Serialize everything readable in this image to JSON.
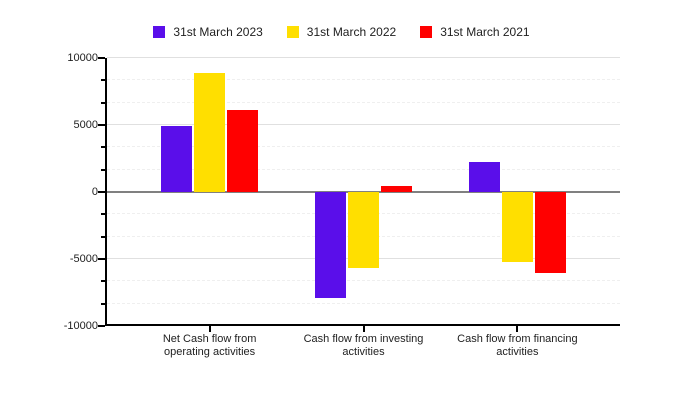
{
  "chart_data": {
    "type": "bar",
    "title": "",
    "xlabel": "",
    "ylabel": "",
    "legend_position": "top",
    "grid": true,
    "categories": [
      "Net Cash flow from operating activities",
      "Cash flow from investing activities",
      "Cash flow from financing activities"
    ],
    "category_lines": [
      [
        "Net Cash flow from",
        "operating activities"
      ],
      [
        "Cash flow from investing",
        "activities"
      ],
      [
        "Cash flow from financing",
        "activities"
      ]
    ],
    "series": [
      {
        "name": "31st March 2023",
        "color": "#5A0EEA",
        "values": [
          4900,
          -7900,
          2250
        ]
      },
      {
        "name": "31st March 2022",
        "color": "#FFDF00",
        "values": [
          8900,
          -5650,
          -5250
        ]
      },
      {
        "name": "31st March 2021",
        "color": "#FF0000",
        "values": [
          6150,
          450,
          -6050
        ]
      }
    ],
    "ylim": [
      -10000,
      10000
    ],
    "y_ticks": [
      {
        "label": "10000",
        "value": 10000
      },
      {
        "label": "5000",
        "value": 5000
      },
      {
        "label": "0",
        "value": 0
      },
      {
        "label": "-5000",
        "value": -5000
      },
      {
        "label": "-10000",
        "value": -10000
      }
    ],
    "minor_ticks_between_major": 2
  },
  "colors": {
    "background": "#ffffff",
    "axis": "#000000",
    "zero_line": "#808080",
    "major_grid": "#e0e0e0",
    "minor_grid": "#efefef",
    "text": "#212121"
  }
}
